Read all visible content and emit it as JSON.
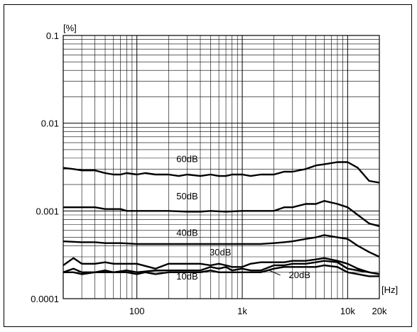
{
  "chart_data": {
    "type": "line",
    "xscale": "log",
    "yscale": "log",
    "xlim": [
      20,
      20000
    ],
    "ylim": [
      0.0001,
      0.1
    ],
    "grid": true,
    "legend": "inline labels",
    "x_unit": "[Hz]",
    "y_unit": "[%]",
    "x_ticks": [
      {
        "value": 100,
        "label": "100"
      },
      {
        "value": 1000,
        "label": "1k"
      },
      {
        "value": 10000,
        "label": "10k"
      },
      {
        "value": 20000,
        "label": "20k"
      }
    ],
    "y_ticks": [
      {
        "value": 0.1,
        "label": "0.1"
      },
      {
        "value": 0.01,
        "label": "0.01"
      },
      {
        "value": 0.001,
        "label": "0.001"
      },
      {
        "value": 0.0001,
        "label": "0.0001"
      }
    ],
    "series": [
      {
        "name": "60dB",
        "points": [
          [
            20,
            0.0031
          ],
          [
            25,
            0.003
          ],
          [
            30,
            0.0029
          ],
          [
            40,
            0.0029
          ],
          [
            50,
            0.0027
          ],
          [
            60,
            0.0026
          ],
          [
            70,
            0.0026
          ],
          [
            80,
            0.0027
          ],
          [
            100,
            0.0026
          ],
          [
            120,
            0.0027
          ],
          [
            150,
            0.0026
          ],
          [
            200,
            0.0026
          ],
          [
            250,
            0.0025
          ],
          [
            300,
            0.0026
          ],
          [
            400,
            0.0025
          ],
          [
            500,
            0.0026
          ],
          [
            600,
            0.0025
          ],
          [
            700,
            0.0025
          ],
          [
            800,
            0.0026
          ],
          [
            1000,
            0.0026
          ],
          [
            1200,
            0.0025
          ],
          [
            1500,
            0.0026
          ],
          [
            2000,
            0.0026
          ],
          [
            2500,
            0.0028
          ],
          [
            3000,
            0.0028
          ],
          [
            4000,
            0.003
          ],
          [
            5000,
            0.0033
          ],
          [
            6000,
            0.0034
          ],
          [
            8000,
            0.0036
          ],
          [
            10000,
            0.0036
          ],
          [
            12500,
            0.0031
          ],
          [
            16000,
            0.0022
          ],
          [
            20000,
            0.0021
          ]
        ]
      },
      {
        "name": "50dB",
        "points": [
          [
            20,
            0.0011
          ],
          [
            25,
            0.0011
          ],
          [
            30,
            0.0011
          ],
          [
            40,
            0.0011
          ],
          [
            50,
            0.00105
          ],
          [
            60,
            0.00105
          ],
          [
            70,
            0.00105
          ],
          [
            80,
            0.001
          ],
          [
            100,
            0.001
          ],
          [
            150,
            0.001
          ],
          [
            200,
            0.001
          ],
          [
            300,
            0.00098
          ],
          [
            400,
            0.00098
          ],
          [
            500,
            0.001
          ],
          [
            700,
            0.00098
          ],
          [
            1000,
            0.001
          ],
          [
            1500,
            0.001
          ],
          [
            2000,
            0.001
          ],
          [
            2500,
            0.0011
          ],
          [
            3000,
            0.0011
          ],
          [
            4000,
            0.0012
          ],
          [
            5000,
            0.0012
          ],
          [
            6000,
            0.0013
          ],
          [
            8000,
            0.0012
          ],
          [
            10000,
            0.0011
          ],
          [
            12500,
            0.0009
          ],
          [
            16000,
            0.00072
          ],
          [
            20000,
            0.00067
          ]
        ]
      },
      {
        "name": "40dB",
        "points": [
          [
            20,
            0.00045
          ],
          [
            30,
            0.00044
          ],
          [
            40,
            0.00044
          ],
          [
            50,
            0.00043
          ],
          [
            70,
            0.00043
          ],
          [
            100,
            0.00042
          ],
          [
            150,
            0.00042
          ],
          [
            200,
            0.00042
          ],
          [
            300,
            0.00042
          ],
          [
            400,
            0.00042
          ],
          [
            500,
            0.00042
          ],
          [
            700,
            0.00042
          ],
          [
            1000,
            0.00042
          ],
          [
            1500,
            0.00042
          ],
          [
            2000,
            0.00043
          ],
          [
            2500,
            0.00044
          ],
          [
            3000,
            0.00045
          ],
          [
            4000,
            0.00048
          ],
          [
            5000,
            0.0005
          ],
          [
            6000,
            0.00053
          ],
          [
            8000,
            0.0005
          ],
          [
            10000,
            0.00048
          ],
          [
            12500,
            0.0004
          ],
          [
            16000,
            0.00034
          ],
          [
            20000,
            0.0003
          ]
        ]
      },
      {
        "name": "30dB",
        "points": [
          [
            20,
            0.00024
          ],
          [
            25,
            0.00029
          ],
          [
            30,
            0.00025
          ],
          [
            40,
            0.00025
          ],
          [
            50,
            0.00026
          ],
          [
            60,
            0.00025
          ],
          [
            80,
            0.00025
          ],
          [
            100,
            0.00025
          ],
          [
            150,
            0.00022
          ],
          [
            200,
            0.00025
          ],
          [
            250,
            0.00025
          ],
          [
            300,
            0.00025
          ],
          [
            400,
            0.00025
          ],
          [
            500,
            0.00024
          ],
          [
            600,
            0.00025
          ],
          [
            700,
            0.00024
          ],
          [
            800,
            0.00023
          ],
          [
            1000,
            0.00023
          ],
          [
            1200,
            0.00025
          ],
          [
            1500,
            0.00026
          ],
          [
            2000,
            0.00026
          ],
          [
            2500,
            0.00026
          ],
          [
            3000,
            0.00027
          ],
          [
            4000,
            0.00027
          ],
          [
            5000,
            0.00028
          ],
          [
            6000,
            0.00029
          ],
          [
            8000,
            0.00027
          ],
          [
            10000,
            0.00025
          ],
          [
            12500,
            0.00022
          ],
          [
            16000,
            0.0002
          ],
          [
            20000,
            0.00019
          ]
        ]
      },
      {
        "name": "20dB",
        "points": [
          [
            20,
            0.0002
          ],
          [
            25,
            0.00022
          ],
          [
            30,
            0.0002
          ],
          [
            40,
            0.0002
          ],
          [
            50,
            0.00021
          ],
          [
            60,
            0.0002
          ],
          [
            80,
            0.00021
          ],
          [
            100,
            0.0002
          ],
          [
            150,
            0.00021
          ],
          [
            200,
            0.00021
          ],
          [
            300,
            0.00021
          ],
          [
            400,
            0.00021
          ],
          [
            500,
            0.00023
          ],
          [
            600,
            0.00022
          ],
          [
            700,
            0.00023
          ],
          [
            800,
            0.00021
          ],
          [
            1000,
            0.00022
          ],
          [
            1200,
            0.00021
          ],
          [
            1500,
            0.00021
          ],
          [
            2000,
            0.00024
          ],
          [
            2500,
            0.00024
          ],
          [
            3000,
            0.00025
          ],
          [
            4000,
            0.00025
          ],
          [
            5000,
            0.00026
          ],
          [
            6000,
            0.00027
          ],
          [
            8000,
            0.00026
          ],
          [
            10000,
            0.00022
          ],
          [
            12500,
            0.00021
          ],
          [
            16000,
            0.0002
          ],
          [
            20000,
            0.00019
          ]
        ]
      },
      {
        "name": "10dB",
        "points": [
          [
            20,
            0.0002
          ],
          [
            25,
            0.0002
          ],
          [
            30,
            0.00019
          ],
          [
            40,
            0.0002
          ],
          [
            50,
            0.0002
          ],
          [
            60,
            0.0002
          ],
          [
            80,
            0.0002
          ],
          [
            100,
            0.00019
          ],
          [
            120,
            0.0002
          ],
          [
            150,
            0.00019
          ],
          [
            200,
            0.0002
          ],
          [
            300,
            0.0002
          ],
          [
            400,
            0.0002
          ],
          [
            500,
            0.00021
          ],
          [
            600,
            0.0002
          ],
          [
            700,
            0.0002
          ],
          [
            800,
            0.0002
          ],
          [
            1000,
            0.0002
          ],
          [
            1200,
            0.0002
          ],
          [
            1500,
            0.0002
          ],
          [
            2000,
            0.00022
          ],
          [
            2500,
            0.00023
          ],
          [
            3000,
            0.00023
          ],
          [
            4000,
            0.00023
          ],
          [
            5000,
            0.00023
          ],
          [
            6000,
            0.00024
          ],
          [
            8000,
            0.00023
          ],
          [
            10000,
            0.0002
          ],
          [
            12500,
            0.00019
          ],
          [
            16000,
            0.00018
          ],
          [
            20000,
            0.00018
          ]
        ]
      }
    ]
  }
}
